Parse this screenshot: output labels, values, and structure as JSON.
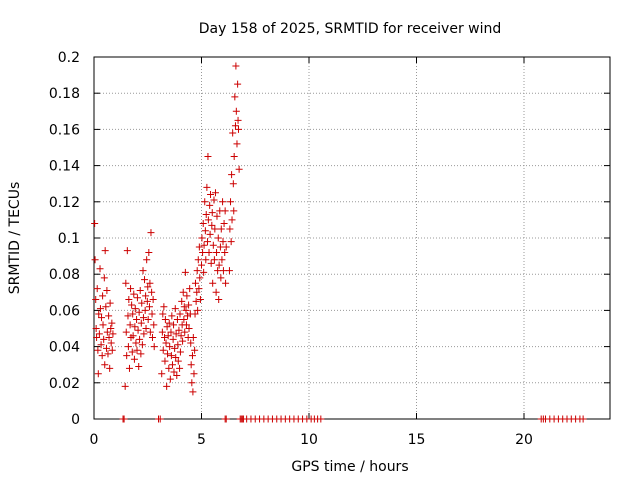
{
  "chart_data": {
    "type": "scatter",
    "title": "Day 158 of 2025, SRMTID for receiver wind",
    "xlabel": "GPS time / hours",
    "ylabel": "SRMTID / TECUs",
    "xlim": [
      0,
      24
    ],
    "ylim": [
      0,
      0.2
    ],
    "x_ticks": [
      0,
      5,
      10,
      15,
      20
    ],
    "x_tick_labels": [
      "0",
      "5",
      "10",
      "15",
      "20"
    ],
    "y_ticks": [
      0,
      0.02,
      0.04,
      0.06,
      0.08,
      0.1,
      0.12,
      0.14,
      0.16,
      0.18,
      0.2
    ],
    "y_tick_labels": [
      "0",
      "0.02",
      "0.04",
      "0.06",
      "0.08",
      "0.1",
      "0.12",
      "0.14",
      "0.16",
      "0.18",
      "0.2"
    ],
    "grid": true,
    "marker": "+",
    "colors": {
      "series": "#cc0000",
      "grid": "#999999",
      "axis": "#000000"
    },
    "series": [
      {
        "name": "SRMTID",
        "points": [
          [
            0.03,
            0.108
          ],
          [
            0.05,
            0.088
          ],
          [
            0.08,
            0.066
          ],
          [
            0.1,
            0.05
          ],
          [
            0.12,
            0.045
          ],
          [
            0.15,
            0.072
          ],
          [
            0.18,
            0.038
          ],
          [
            0.2,
            0.025
          ],
          [
            0.22,
            0.058
          ],
          [
            0.25,
            0.047
          ],
          [
            0.28,
            0.083
          ],
          [
            0.3,
            0.061
          ],
          [
            0.33,
            0.041
          ],
          [
            0.35,
            0.056
          ],
          [
            0.38,
            0.035
          ],
          [
            0.4,
            0.068
          ],
          [
            0.42,
            0.052
          ],
          [
            0.45,
            0.044
          ],
          [
            0.48,
            0.078
          ],
          [
            0.5,
            0.03
          ],
          [
            0.52,
            0.093
          ],
          [
            0.55,
            0.062
          ],
          [
            0.58,
            0.039
          ],
          [
            0.6,
            0.071
          ],
          [
            0.62,
            0.048
          ],
          [
            0.65,
            0.036
          ],
          [
            0.68,
            0.057
          ],
          [
            0.7,
            0.045
          ],
          [
            0.73,
            0.028
          ],
          [
            0.75,
            0.064
          ],
          [
            0.78,
            0.05
          ],
          [
            0.8,
            0.042
          ],
          [
            0.83,
            0.053
          ],
          [
            0.85,
            0.038
          ],
          [
            0.88,
            0.047
          ],
          [
            1.45,
            0.018
          ],
          [
            1.48,
            0.075
          ],
          [
            1.5,
            0.048
          ],
          [
            1.52,
            0.035
          ],
          [
            1.55,
            0.093
          ],
          [
            1.58,
            0.057
          ],
          [
            1.6,
            0.04
          ],
          [
            1.62,
            0.066
          ],
          [
            1.65,
            0.028
          ],
          [
            1.68,
            0.052
          ],
          [
            1.7,
            0.072
          ],
          [
            1.72,
            0.045
          ],
          [
            1.75,
            0.063
          ],
          [
            1.78,
            0.037
          ],
          [
            1.8,
            0.058
          ],
          [
            1.82,
            0.046
          ],
          [
            1.85,
            0.069
          ],
          [
            1.88,
            0.033
          ],
          [
            1.9,
            0.051
          ],
          [
            1.92,
            0.061
          ],
          [
            1.95,
            0.042
          ],
          [
            1.98,
            0.055
          ],
          [
            2.0,
            0.038
          ],
          [
            2.02,
            0.067
          ],
          [
            2.05,
            0.049
          ],
          [
            2.08,
            0.029
          ],
          [
            2.1,
            0.059
          ],
          [
            2.12,
            0.044
          ],
          [
            2.15,
            0.071
          ],
          [
            2.18,
            0.036
          ],
          [
            2.2,
            0.053
          ],
          [
            2.22,
            0.064
          ],
          [
            2.25,
            0.041
          ],
          [
            2.28,
            0.082
          ],
          [
            2.3,
            0.056
          ],
          [
            2.32,
            0.047
          ],
          [
            2.35,
            0.077
          ],
          [
            2.38,
            0.06
          ],
          [
            2.4,
            0.068
          ],
          [
            2.42,
            0.05
          ],
          [
            2.45,
            0.088
          ],
          [
            2.48,
            0.065
          ],
          [
            2.5,
            0.073
          ],
          [
            2.52,
            0.055
          ],
          [
            2.55,
            0.092
          ],
          [
            2.58,
            0.062
          ],
          [
            2.6,
            0.075
          ],
          [
            2.62,
            0.048
          ],
          [
            2.65,
            0.103
          ],
          [
            2.68,
            0.07
          ],
          [
            2.7,
            0.058
          ],
          [
            2.72,
            0.045
          ],
          [
            2.75,
            0.066
          ],
          [
            2.78,
            0.052
          ],
          [
            2.8,
            0.04
          ],
          [
            3.15,
            0.025
          ],
          [
            3.18,
            0.048
          ],
          [
            3.2,
            0.058
          ],
          [
            3.22,
            0.038
          ],
          [
            3.25,
            0.062
          ],
          [
            3.28,
            0.045
          ],
          [
            3.3,
            0.032
          ],
          [
            3.32,
            0.055
          ],
          [
            3.35,
            0.042
          ],
          [
            3.38,
            0.018
          ],
          [
            3.4,
            0.051
          ],
          [
            3.42,
            0.036
          ],
          [
            3.45,
            0.046
          ],
          [
            3.48,
            0.028
          ],
          [
            3.5,
            0.053
          ],
          [
            3.52,
            0.04
          ],
          [
            3.55,
            0.022
          ],
          [
            3.58,
            0.048
          ],
          [
            3.6,
            0.035
          ],
          [
            3.62,
            0.057
          ],
          [
            3.65,
            0.03
          ],
          [
            3.68,
            0.044
          ],
          [
            3.7,
            0.052
          ],
          [
            3.72,
            0.026
          ],
          [
            3.75,
            0.039
          ],
          [
            3.78,
            0.061
          ],
          [
            3.8,
            0.034
          ],
          [
            3.82,
            0.047
          ],
          [
            3.85,
            0.024
          ],
          [
            3.88,
            0.055
          ],
          [
            3.9,
            0.041
          ],
          [
            3.92,
            0.032
          ],
          [
            3.95,
            0.049
          ],
          [
            3.98,
            0.028
          ],
          [
            4.0,
            0.058
          ],
          [
            4.02,
            0.037
          ],
          [
            4.05,
            0.046
          ],
          [
            4.08,
            0.065
          ],
          [
            4.1,
            0.052
          ],
          [
            4.12,
            0.043
          ],
          [
            4.15,
            0.07
          ],
          [
            4.18,
            0.055
          ],
          [
            4.2,
            0.062
          ],
          [
            4.22,
            0.048
          ],
          [
            4.25,
            0.081
          ],
          [
            4.28,
            0.06
          ],
          [
            4.3,
            0.052
          ],
          [
            4.32,
            0.068
          ],
          [
            4.35,
            0.057
          ],
          [
            4.38,
            0.045
          ],
          [
            4.4,
            0.063
          ],
          [
            4.42,
            0.05
          ],
          [
            4.45,
            0.072
          ],
          [
            4.48,
            0.058
          ],
          [
            4.5,
            0.042
          ],
          [
            4.52,
            0.03
          ],
          [
            4.55,
            0.02
          ],
          [
            4.58,
            0.035
          ],
          [
            4.6,
            0.015
          ],
          [
            4.62,
            0.045
          ],
          [
            4.65,
            0.025
          ],
          [
            4.68,
            0.038
          ],
          [
            4.7,
            0.058
          ],
          [
            4.72,
            0.075
          ],
          [
            4.75,
            0.065
          ],
          [
            4.78,
            0.07
          ],
          [
            4.8,
            0.082
          ],
          [
            4.82,
            0.06
          ],
          [
            4.85,
            0.088
          ],
          [
            4.88,
            0.072
          ],
          [
            4.9,
            0.095
          ],
          [
            4.92,
            0.078
          ],
          [
            4.95,
            0.066
          ],
          [
            5.0,
            0.085
          ],
          [
            5.02,
            0.1
          ],
          [
            5.05,
            0.092
          ],
          [
            5.08,
            0.108
          ],
          [
            5.1,
            0.081
          ],
          [
            5.12,
            0.096
          ],
          [
            5.15,
            0.12
          ],
          [
            5.18,
            0.104
          ],
          [
            5.2,
            0.088
          ],
          [
            5.22,
            0.113
          ],
          [
            5.25,
            0.128
          ],
          [
            5.28,
            0.098
          ],
          [
            5.3,
            0.145
          ],
          [
            5.32,
            0.11
          ],
          [
            5.35,
            0.092
          ],
          [
            5.38,
            0.118
          ],
          [
            5.4,
            0.102
          ],
          [
            5.42,
            0.124
          ],
          [
            5.45,
            0.086
          ],
          [
            5.48,
            0.107
          ],
          [
            5.5,
            0.114
          ],
          [
            5.52,
            0.075
          ],
          [
            5.55,
            0.096
          ],
          [
            5.58,
            0.121
          ],
          [
            5.6,
            0.088
          ],
          [
            5.62,
            0.105
          ],
          [
            5.65,
            0.125
          ],
          [
            5.68,
            0.07
          ],
          [
            5.7,
            0.092
          ],
          [
            5.72,
            0.112
          ],
          [
            5.75,
            0.082
          ],
          [
            5.78,
            0.1
          ],
          [
            5.8,
            0.066
          ],
          [
            5.82,
            0.085
          ],
          [
            5.85,
            0.115
          ],
          [
            5.88,
            0.095
          ],
          [
            5.9,
            0.078
          ],
          [
            5.92,
            0.105
          ],
          [
            5.95,
            0.088
          ],
          [
            5.98,
            0.12
          ],
          [
            6.0,
            0.098
          ],
          [
            6.02,
            0.082
          ],
          [
            6.05,
            0.108
          ],
          [
            6.08,
            0.092
          ],
          [
            6.1,
            0.115
          ],
          [
            6.12,
            0.075
          ],
          [
            6.15,
            0.095
          ],
          [
            6.3,
            0.082
          ],
          [
            6.32,
            0.105
          ],
          [
            6.35,
            0.12
          ],
          [
            6.38,
            0.098
          ],
          [
            6.4,
            0.135
          ],
          [
            6.42,
            0.11
          ],
          [
            6.45,
            0.158
          ],
          [
            6.48,
            0.13
          ],
          [
            6.5,
            0.115
          ],
          [
            6.52,
            0.145
          ],
          [
            6.55,
            0.178
          ],
          [
            6.58,
            0.162
          ],
          [
            6.6,
            0.195
          ],
          [
            6.62,
            0.17
          ],
          [
            6.65,
            0.152
          ],
          [
            6.68,
            0.185
          ],
          [
            6.7,
            0.165
          ],
          [
            6.72,
            0.16
          ],
          [
            6.75,
            0.138
          ]
        ],
        "zero_points": [
          1.35,
          1.4,
          3.0,
          3.08,
          6.1,
          6.15,
          6.8,
          6.85,
          6.9,
          6.95,
          7.1,
          7.3,
          7.5,
          7.7,
          7.9,
          8.1,
          8.3,
          8.5,
          8.7,
          8.9,
          9.1,
          9.3,
          9.5,
          9.7,
          9.9,
          10.1,
          10.25,
          10.4,
          10.55,
          20.8,
          20.9,
          21.0,
          21.2,
          21.4,
          21.6,
          21.8,
          22.0,
          22.2,
          22.4,
          22.6,
          22.75
        ]
      }
    ]
  }
}
